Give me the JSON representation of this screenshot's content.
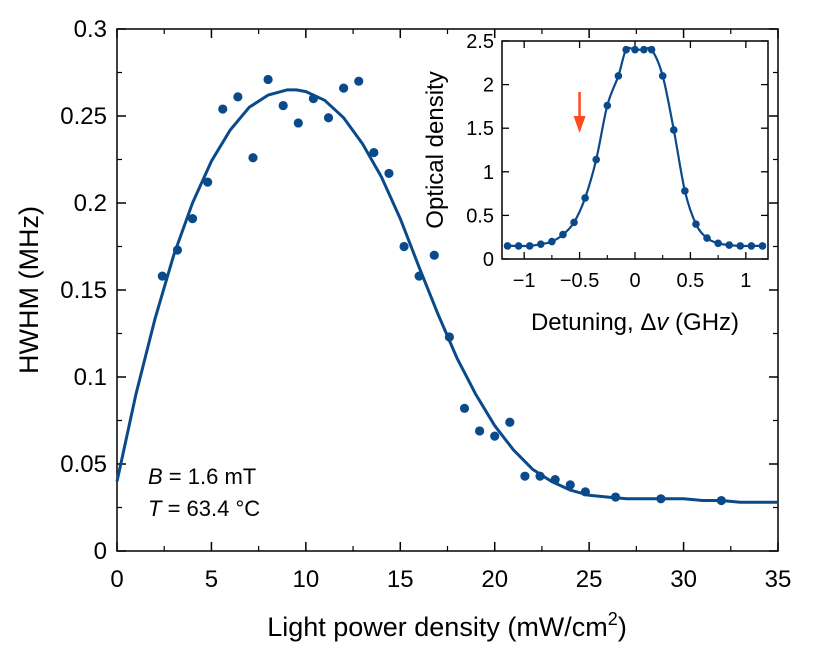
{
  "chart_data": [
    {
      "type": "scatter",
      "xlabel_main": "Light power density (mW/cm",
      "xlabel_sup": "2",
      "xlabel_end": ")",
      "ylabel": "HWHM (MHz)",
      "xlim": [
        0,
        35
      ],
      "ylim": [
        0,
        0.3
      ],
      "xticks": [
        "0",
        "5",
        "10",
        "15",
        "20",
        "25",
        "30",
        "35"
      ],
      "yticks": [
        "0",
        "0.05",
        "0.1",
        "0.15",
        "0.2",
        "0.25",
        "0.3"
      ],
      "series": [
        {
          "kind": "points",
          "color": "#0b4a8a",
          "x": [
            2.4,
            3.2,
            4.0,
            4.8,
            5.6,
            6.4,
            7.2,
            8.0,
            8.8,
            9.6,
            10.4,
            11.2,
            12.0,
            12.8,
            13.6,
            14.4,
            15.2,
            16.0,
            16.8,
            17.6,
            18.4,
            19.2,
            20.0,
            20.8,
            21.6,
            22.4,
            23.2,
            24.0,
            24.8,
            26.4,
            28.8,
            32.0
          ],
          "y": [
            0.158,
            0.173,
            0.191,
            0.212,
            0.254,
            0.261,
            0.226,
            0.271,
            0.256,
            0.246,
            0.26,
            0.249,
            0.266,
            0.27,
            0.229,
            0.217,
            0.175,
            0.158,
            0.17,
            0.123,
            0.082,
            0.069,
            0.066,
            0.074,
            0.043,
            0.043,
            0.041,
            0.038,
            0.034,
            0.031,
            0.03,
            0.029
          ]
        },
        {
          "kind": "fit",
          "color": "#0b4a8a",
          "x": [
            0,
            1,
            2,
            3,
            4,
            5,
            6,
            7,
            8,
            9,
            9.5,
            10,
            11,
            12,
            13,
            14,
            15,
            16,
            17,
            18,
            19,
            20,
            21,
            22,
            23,
            24,
            25,
            26,
            27,
            28,
            29,
            30,
            31,
            32,
            33,
            34,
            35
          ],
          "y": [
            0.04,
            0.09,
            0.133,
            0.17,
            0.2,
            0.224,
            0.242,
            0.255,
            0.262,
            0.265,
            0.265,
            0.264,
            0.259,
            0.249,
            0.234,
            0.215,
            0.191,
            0.163,
            0.136,
            0.111,
            0.09,
            0.072,
            0.058,
            0.047,
            0.04,
            0.035,
            0.032,
            0.031,
            0.03,
            0.03,
            0.03,
            0.03,
            0.029,
            0.029,
            0.028,
            0.028,
            0.028
          ]
        }
      ],
      "annotations": [
        {
          "var": "B",
          "text": " = 1.6 mT"
        },
        {
          "var": "T",
          "text": " = 63.4 °C"
        }
      ]
    },
    {
      "type": "line",
      "xlabel_main": "Detuning, Δ",
      "xlabel_var": "v",
      "xlabel_end": " (GHz)",
      "ylabel": "Optical density",
      "xlim": [
        -1.2,
        1.2
      ],
      "ylim": [
        0,
        2.5
      ],
      "xticks": [
        {
          "v": -1,
          "label": "−1"
        },
        {
          "v": -0.5,
          "label": "−0.5"
        },
        {
          "v": 0,
          "label": "0"
        },
        {
          "v": 0.5,
          "label": "0.5"
        },
        {
          "v": 1,
          "label": "1"
        }
      ],
      "yticks": [
        "0",
        "0.5",
        "1",
        "1.5",
        "2",
        "2.5"
      ],
      "marker_arrow": {
        "x": -0.5,
        "color": "#ff4a1c"
      },
      "series": [
        {
          "color": "#0b4a8a",
          "x": [
            -1.15,
            -1.05,
            -0.95,
            -0.85,
            -0.75,
            -0.65,
            -0.55,
            -0.45,
            -0.35,
            -0.25,
            -0.15,
            -0.08,
            0.0,
            0.08,
            0.15,
            0.25,
            0.35,
            0.45,
            0.55,
            0.65,
            0.75,
            0.85,
            0.95,
            1.05,
            1.15
          ],
          "y": [
            0.15,
            0.15,
            0.15,
            0.17,
            0.2,
            0.28,
            0.42,
            0.7,
            1.14,
            1.76,
            2.1,
            2.4,
            2.4,
            2.4,
            2.4,
            2.1,
            1.48,
            0.78,
            0.4,
            0.24,
            0.18,
            0.16,
            0.15,
            0.15,
            0.15
          ]
        }
      ]
    }
  ]
}
